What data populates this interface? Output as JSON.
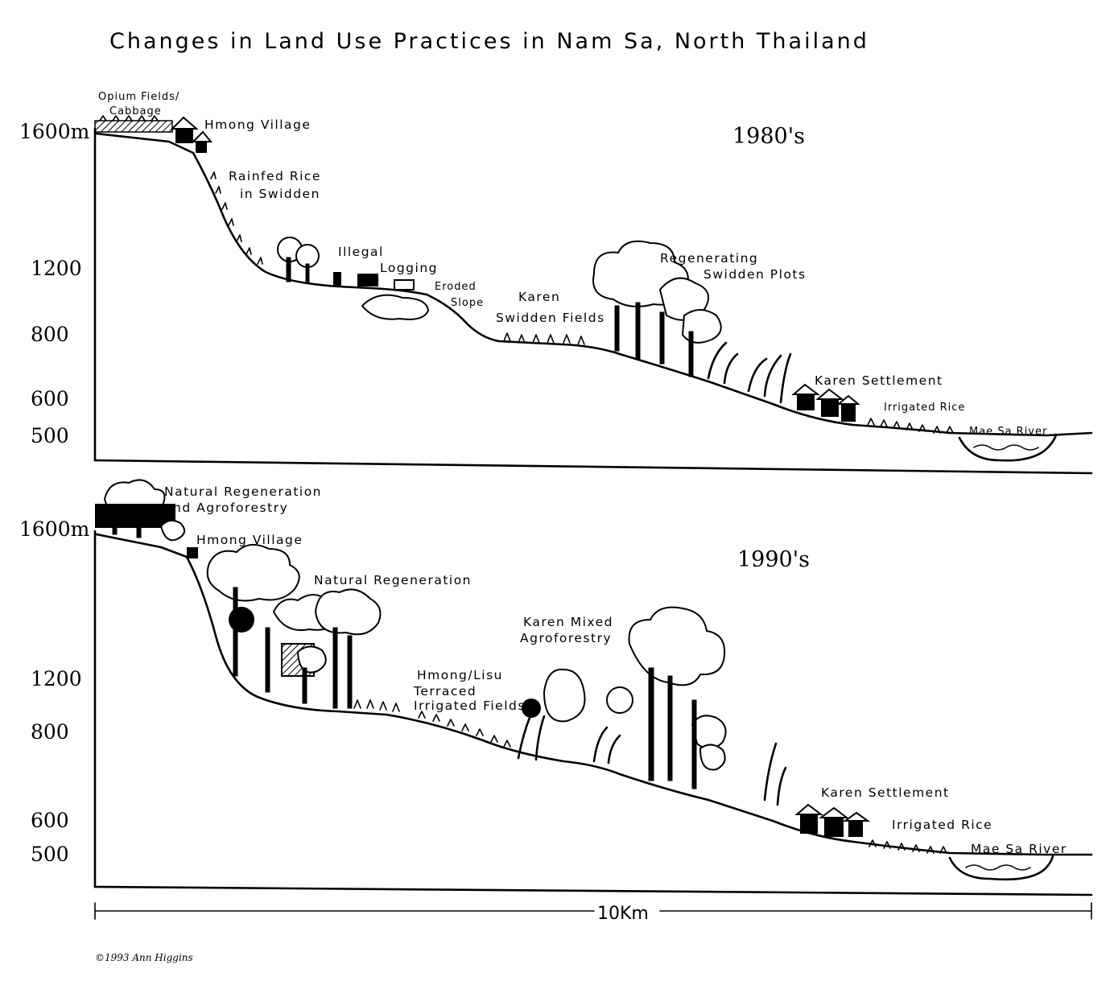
{
  "title": "Changes in Land Use Practices in Nam Sa, North Thailand",
  "panels": [
    {
      "era": "1980's",
      "elevations": [
        "1600m",
        "1200",
        "800",
        "600",
        "500"
      ],
      "labels": {
        "opium_fields": "Opium Fields/",
        "cabbage": "Cabbage",
        "hmong_village": "Hmong Village",
        "rainfed_rice_1": "Rainfed Rice",
        "rainfed_rice_2": "in Swidden",
        "illegal_logging_1": "Illegal",
        "illegal_logging_2": "Logging",
        "eroded_slope_1": "Eroded",
        "eroded_slope_2": "Slope",
        "karen_swidden_1": "Karen",
        "karen_swidden_2": "Swidden Fields",
        "regenerating_1": "Regenerating",
        "regenerating_2": "Swidden Plots",
        "karen_settlement": "Karen Settlement",
        "irrigated_rice": "Irrigated Rice",
        "mae_sa_river": "Mae Sa River"
      }
    },
    {
      "era": "1990's",
      "elevations": [
        "1600m",
        "1200",
        "800",
        "600",
        "500"
      ],
      "labels": {
        "natural_regen_agro_1": "Natural Regeneration",
        "natural_regen_agro_2": "and Agroforestry",
        "hmong_village": "Hmong Village",
        "natural_regeneration": "Natural Regeneration",
        "karen_mixed_1": "Karen Mixed",
        "karen_mixed_2": "Agroforestry",
        "hmong_lisu_1": "Hmong/Lisu",
        "hmong_lisu_2": "Terraced",
        "hmong_lisu_3": "Irrigated Fields",
        "karen_settlement": "Karen Settlement",
        "irrigated_rice": "Irrigated Rice",
        "mae_sa_river": "Mae Sa River"
      }
    }
  ],
  "scale": "10Km",
  "credit": "©1993 Ann Higgins"
}
